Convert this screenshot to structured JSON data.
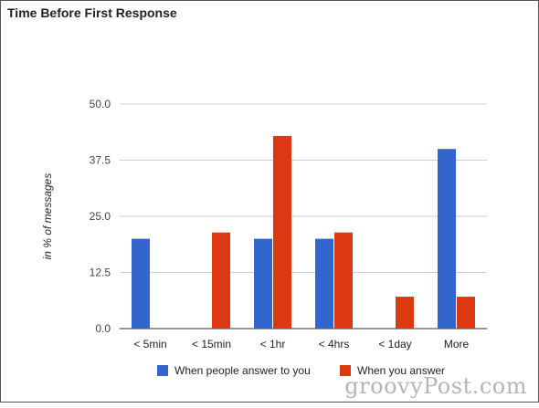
{
  "chart_data": {
    "type": "bar",
    "title": "Time Before First Response",
    "xlabel": "",
    "ylabel": "in % of messages",
    "categories": [
      "< 5min",
      "< 15min",
      "< 1hr",
      "< 4hrs",
      "< 1day",
      "More"
    ],
    "series": [
      {
        "name": "When people answer to you",
        "color": "#3366cc",
        "values": [
          20,
          0,
          20,
          20,
          0,
          40
        ]
      },
      {
        "name": "When you answer",
        "color": "#dc3912",
        "values": [
          0,
          21.4,
          42.9,
          21.4,
          7.1,
          7.1
        ]
      }
    ],
    "ylim": [
      0,
      50
    ],
    "yticks": [
      "0.0",
      "12.5",
      "25.0",
      "37.5",
      "50.0"
    ],
    "grid": true,
    "legend": "bottom"
  },
  "watermark": "groovyPost.com"
}
